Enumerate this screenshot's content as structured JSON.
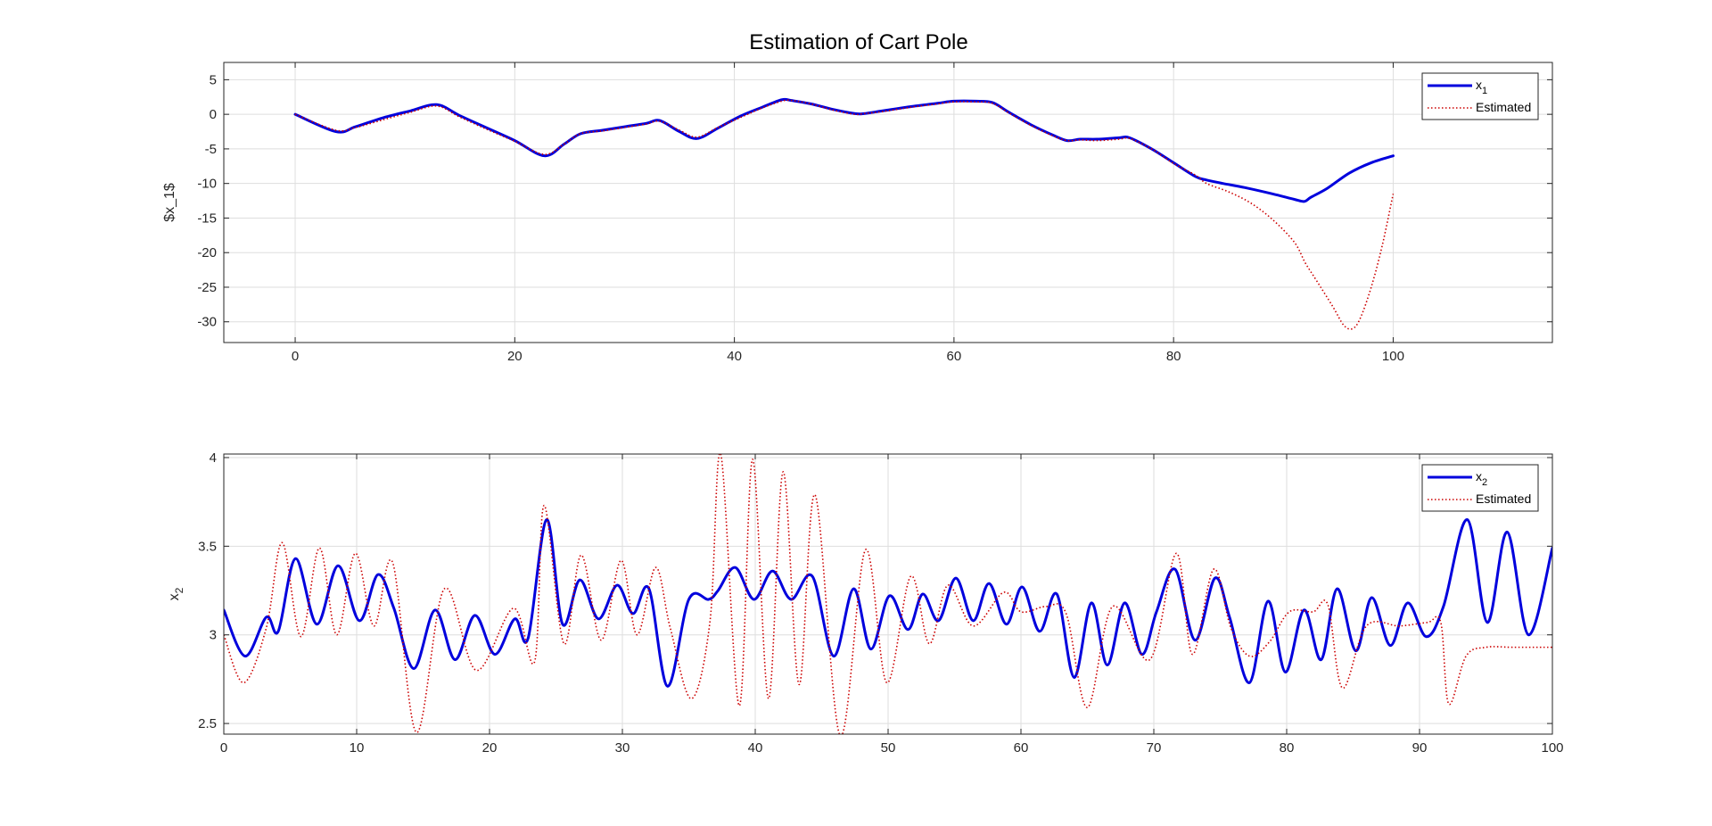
{
  "figure": {
    "title": "Estimation of Cart Pole"
  },
  "chart_data": [
    {
      "type": "line",
      "title": "Estimation of Cart Pole",
      "xlabel": "",
      "ylabel": "$x_1$",
      "xlim": [
        -6.5,
        114.5
      ],
      "ylim": [
        -33,
        7.5
      ],
      "xticks": [
        0,
        20,
        40,
        60,
        80,
        100
      ],
      "yticks": [
        5,
        0,
        -5,
        -10,
        -15,
        -20,
        -25,
        -30
      ],
      "grid": true,
      "legend_position": "top-right",
      "legend": [
        {
          "name": "x",
          "sub": "1"
        },
        {
          "name": "Estimated",
          "sub": ""
        }
      ],
      "series": [
        {
          "name": "x1",
          "color": "#0000dd",
          "style": "solid",
          "x": [
            0,
            3.7,
            5.5,
            8,
            10.5,
            12.9,
            15,
            17.5,
            20,
            22.7,
            24.5,
            26,
            28,
            30,
            32,
            33.2,
            35,
            36.6,
            38.5,
            40.5,
            42.5,
            44.3,
            45.2,
            47,
            49,
            51,
            51.8,
            53.5,
            56,
            58.5,
            60,
            62,
            63.5,
            65,
            67,
            69,
            70.3,
            71.5,
            73,
            75,
            76,
            78,
            80,
            82,
            83,
            84.5,
            86.5,
            89,
            91,
            91.9,
            92.5,
            94,
            96,
            98,
            100
          ],
          "y": [
            0,
            -2.5,
            -1.8,
            -0.5,
            0.5,
            1.4,
            -0.2,
            -2,
            -3.8,
            -6,
            -4.3,
            -2.8,
            -2.3,
            -1.8,
            -1.3,
            -0.9,
            -2.5,
            -3.5,
            -2,
            -0.3,
            1.0,
            2.1,
            2.0,
            1.5,
            0.7,
            0.1,
            0.1,
            0.5,
            1.1,
            1.6,
            1.9,
            1.9,
            1.7,
            0.3,
            -1.5,
            -3,
            -3.8,
            -3.6,
            -3.6,
            -3.4,
            -3.4,
            -5,
            -7,
            -9,
            -9.5,
            -10,
            -10.6,
            -11.5,
            -12.3,
            -12.6,
            -12,
            -10.7,
            -8.5,
            -7,
            -6
          ]
        },
        {
          "name": "Estimated",
          "color": "#cc0000",
          "style": "dotted",
          "x": [
            0,
            3.7,
            5.5,
            8,
            10.5,
            12.9,
            15,
            17.5,
            20,
            22.7,
            24.5,
            26,
            28,
            30,
            32,
            33.2,
            35,
            36.6,
            38.5,
            40.5,
            42.5,
            44.3,
            45.2,
            47,
            49,
            51,
            51.8,
            53.5,
            56,
            58.5,
            60,
            62,
            63.5,
            65,
            67,
            69,
            70.3,
            71.5,
            73,
            75,
            76,
            78,
            80,
            82,
            83,
            85,
            87,
            89,
            91,
            92,
            93,
            94.5,
            95.5,
            96.3,
            97,
            98,
            99,
            100
          ],
          "y": [
            0,
            -2.3,
            -1.9,
            -0.8,
            0.3,
            1.2,
            -0.4,
            -2.2,
            -3.9,
            -5.8,
            -4.3,
            -2.8,
            -2.4,
            -1.9,
            -1.4,
            -1.0,
            -2.3,
            -3.3,
            -1.9,
            -0.5,
            0.9,
            1.9,
            2.0,
            1.5,
            0.6,
            0.0,
            0.1,
            0.4,
            1.0,
            1.5,
            1.8,
            1.8,
            1.6,
            0.2,
            -1.6,
            -3.1,
            -3.8,
            -3.7,
            -3.8,
            -3.6,
            -3.5,
            -5,
            -7.1,
            -8.8,
            -10,
            -11.2,
            -12.8,
            -15.2,
            -18.5,
            -21.5,
            -24,
            -27.8,
            -30.5,
            -31,
            -29.5,
            -25,
            -19,
            -11.5
          ]
        }
      ]
    },
    {
      "type": "line",
      "title": "",
      "xlabel": "",
      "ylabel": "x",
      "ylabel_sub": "2",
      "xlim": [
        0,
        100
      ],
      "ylim": [
        2.44,
        4.02
      ],
      "xticks": [
        0,
        10,
        20,
        30,
        40,
        50,
        60,
        70,
        80,
        90,
        100
      ],
      "yticks": [
        4,
        3.5,
        3,
        2.5
      ],
      "ytick_labels": [
        "4",
        "3.5",
        "3",
        "2.5"
      ],
      "grid": true,
      "legend_position": "top-right",
      "legend": [
        {
          "name": "x",
          "sub": "2"
        },
        {
          "name": "Estimated",
          "sub": ""
        }
      ],
      "series": [
        {
          "name": "x2",
          "color": "#0000dd",
          "style": "solid",
          "x": [
            0,
            1.6,
            3.2,
            4.1,
            5.4,
            7,
            8.6,
            10.2,
            11.6,
            12.8,
            14.3,
            15.9,
            17.4,
            18.9,
            20.4,
            21.9,
            22.9,
            24.3,
            25.5,
            26.8,
            28.2,
            29.6,
            30.8,
            32,
            33.4,
            35,
            36.5,
            37.2,
            38.5,
            39.9,
            41.3,
            42.7,
            44.3,
            45.9,
            47.4,
            48.7,
            50.1,
            51.5,
            52.6,
            53.8,
            55.1,
            56.4,
            57.6,
            58.9,
            60.1,
            61.4,
            62.7,
            64,
            65.3,
            66.5,
            67.8,
            69.1,
            70.2,
            71.6,
            73.1,
            74.6,
            75.7,
            77.2,
            78.6,
            79.9,
            81.3,
            82.6,
            83.8,
            85.2,
            86.4,
            87.8,
            89.1,
            90.5,
            91.8,
            93.6,
            95.1,
            96.6,
            98.2,
            100
          ],
          "y": [
            3.14,
            2.88,
            3.1,
            3.02,
            3.43,
            3.06,
            3.39,
            3.08,
            3.34,
            3.15,
            2.81,
            3.14,
            2.86,
            3.11,
            2.89,
            3.09,
            2.98,
            3.65,
            3.06,
            3.31,
            3.09,
            3.28,
            3.12,
            3.26,
            2.71,
            3.2,
            3.2,
            3.25,
            3.38,
            3.2,
            3.36,
            3.2,
            3.33,
            2.88,
            3.26,
            2.92,
            3.22,
            3.03,
            3.23,
            3.08,
            3.32,
            3.08,
            3.29,
            3.06,
            3.27,
            3.02,
            3.23,
            2.76,
            3.18,
            2.83,
            3.18,
            2.89,
            3.13,
            3.37,
            2.97,
            3.32,
            3.1,
            2.73,
            3.19,
            2.79,
            3.14,
            2.86,
            3.26,
            2.91,
            3.21,
            2.94,
            3.18,
            2.99,
            3.16,
            3.65,
            3.07,
            3.58,
            3.0,
            3.49
          ]
        },
        {
          "name": "Estimated",
          "color": "#cc0000",
          "style": "dotted",
          "x": [
            0,
            1.5,
            3.2,
            4.4,
            5.8,
            7.2,
            8.5,
            9.9,
            11.3,
            12.7,
            14.5,
            16.6,
            19,
            21.8,
            23.4,
            24.1,
            25.6,
            26.9,
            28.4,
            29.9,
            31.1,
            32.5,
            33.6,
            35.2,
            36.6,
            37.4,
            38.8,
            39.8,
            41,
            42.1,
            43.3,
            44.5,
            46.4,
            48.3,
            49.9,
            51.7,
            53.1,
            54.5,
            56.4,
            58.7,
            60,
            61.9,
            63.4,
            65,
            66.9,
            69.7,
            71.7,
            72.9,
            74.5,
            75.8,
            77.2,
            78.7,
            80.2,
            82,
            83.1,
            84.2,
            86,
            88.5,
            90.6,
            91.6,
            92.2,
            93.5,
            95,
            97,
            100
          ],
          "y": [
            3.0,
            2.73,
            3.04,
            3.52,
            2.99,
            3.49,
            3.0,
            3.46,
            3.05,
            3.41,
            2.45,
            3.26,
            2.8,
            3.15,
            2.85,
            3.73,
            2.95,
            3.45,
            2.97,
            3.42,
            3.0,
            3.38,
            3.04,
            2.64,
            3.08,
            4.02,
            2.6,
            3.99,
            2.64,
            3.92,
            2.72,
            3.79,
            2.43,
            3.48,
            2.73,
            3.33,
            2.95,
            3.28,
            3.05,
            3.24,
            3.13,
            3.16,
            3.12,
            2.59,
            3.16,
            2.86,
            3.46,
            2.89,
            3.37,
            3.04,
            2.88,
            2.96,
            3.13,
            3.13,
            3.17,
            2.7,
            3.05,
            3.05,
            3.07,
            3.07,
            2.61,
            2.88,
            2.93,
            2.93,
            2.93
          ]
        }
      ]
    }
  ]
}
